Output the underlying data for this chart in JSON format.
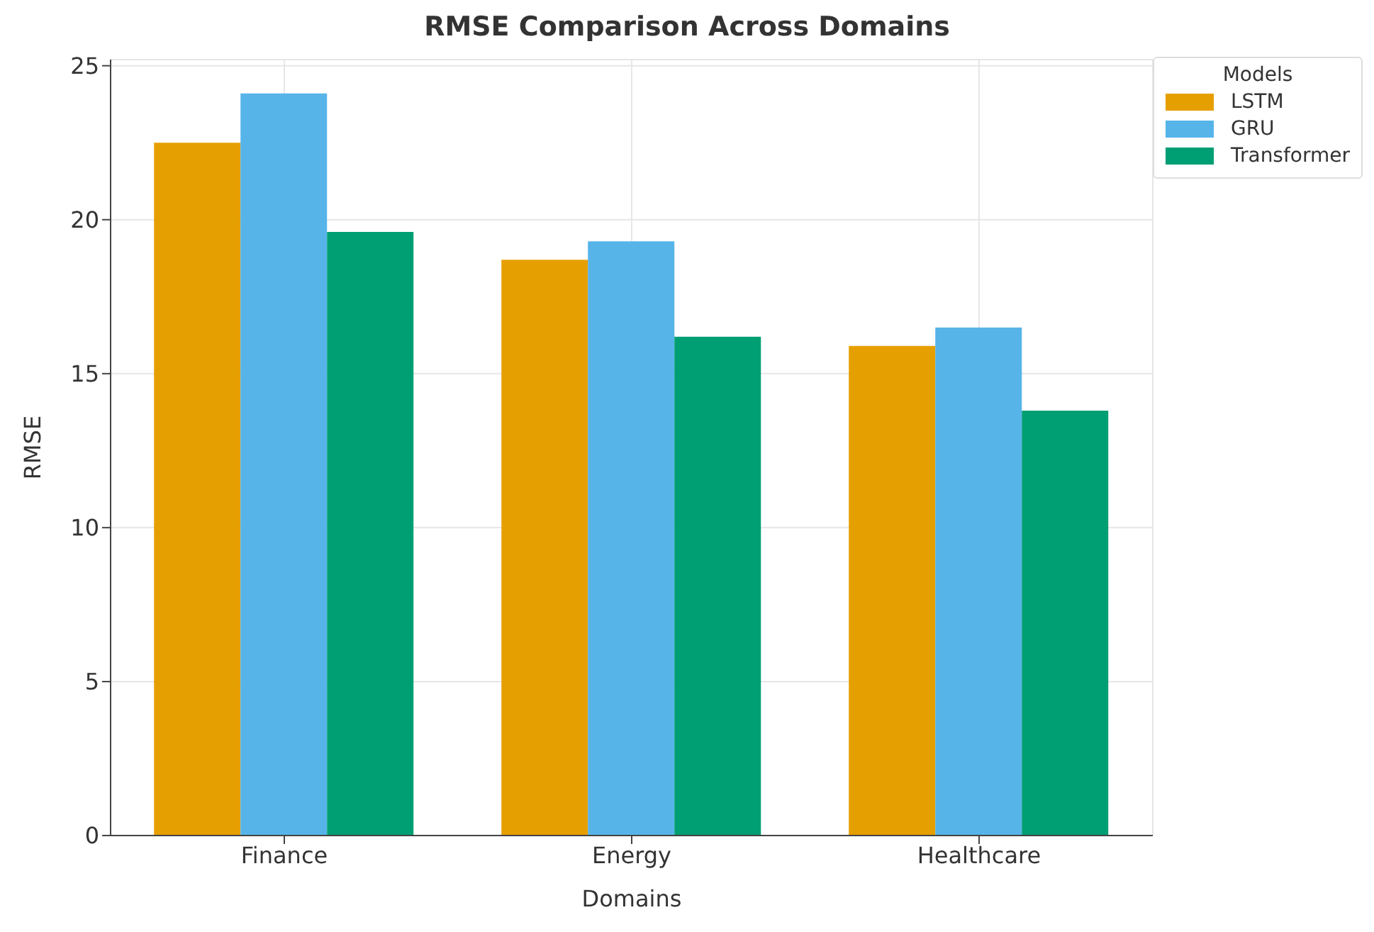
{
  "chart_data": {
    "type": "bar",
    "title": "RMSE Comparison Across Domains",
    "xlabel": "Domains",
    "ylabel": "RMSE",
    "legend_title": "Models",
    "categories": [
      "Finance",
      "Energy",
      "Healthcare"
    ],
    "series": [
      {
        "name": "LSTM",
        "color": "#e69f00",
        "values": [
          22.5,
          18.7,
          15.9
        ]
      },
      {
        "name": "GRU",
        "color": "#56b4e9",
        "values": [
          24.1,
          19.3,
          16.5
        ]
      },
      {
        "name": "Transformer",
        "color": "#009e73",
        "values": [
          19.6,
          16.2,
          13.8
        ]
      }
    ],
    "ylim": [
      0,
      25.2
    ],
    "yticks": [
      0,
      5,
      10,
      15,
      20,
      25
    ],
    "grid": true,
    "legend": "top right"
  }
}
